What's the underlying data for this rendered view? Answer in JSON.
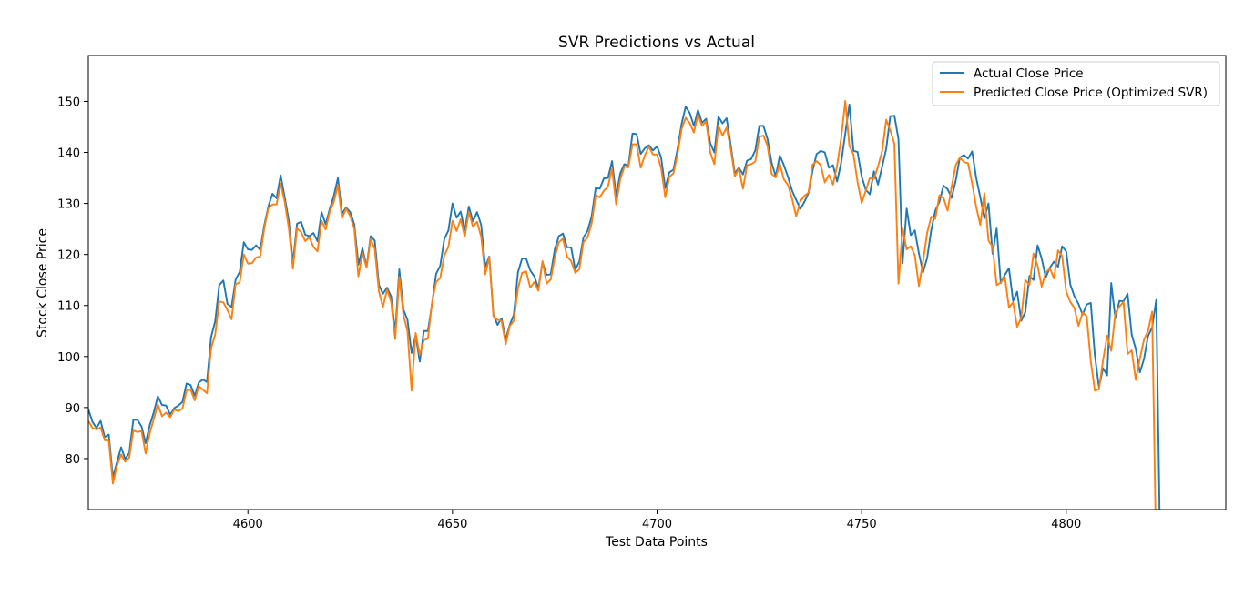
{
  "chart_data": {
    "type": "line",
    "title": "SVR Predictions vs Actual",
    "xlabel": "Test Data Points",
    "ylabel": "Stock Close Price",
    "xlim": [
      4561,
      4839
    ],
    "ylim": [
      70,
      159
    ],
    "xticks": [
      4600,
      4650,
      4700,
      4750,
      4800
    ],
    "yticks": [
      80,
      90,
      100,
      110,
      120,
      130,
      140,
      150
    ],
    "grid": false,
    "legend_position": "top-right",
    "x_start": 4561,
    "series": [
      {
        "name": "Actual Close Price",
        "color": "#1f77b4",
        "values": [
          89.7,
          87.2,
          86.0,
          87.4,
          84.2,
          84.7,
          76.3,
          79.3,
          82.2,
          79.9,
          81.1,
          87.6,
          87.6,
          86.3,
          83.0,
          86.5,
          89.1,
          92.2,
          90.5,
          90.4,
          88.6,
          89.9,
          90.4,
          91.1,
          94.7,
          94.4,
          92.3,
          94.9,
          95.5,
          95.0,
          103.8,
          106.9,
          114.0,
          114.9,
          110.3,
          109.7,
          115.1,
          116.6,
          122.4,
          121.0,
          120.9,
          121.8,
          120.9,
          125.7,
          129.4,
          131.9,
          131.0,
          135.5,
          131.2,
          126.6,
          118.3,
          126.0,
          126.4,
          123.9,
          123.6,
          124.2,
          122.6,
          128.3,
          125.9,
          128.9,
          131.5,
          135.0,
          128.0,
          129.2,
          128.3,
          125.9,
          118.0,
          121.2,
          117.6,
          123.6,
          122.7,
          114.1,
          112.3,
          113.5,
          111.8,
          104.7,
          117.1,
          109.2,
          107.2,
          100.7,
          104.2,
          99.0,
          105.0,
          105.0,
          110.3,
          116.2,
          117.8,
          123.0,
          124.7,
          130.0,
          127.2,
          128.4,
          124.7,
          129.4,
          126.5,
          128.3,
          125.8,
          117.6,
          119.6,
          108.2,
          106.2,
          107.5,
          103.4,
          106.2,
          108.2,
          116.5,
          119.2,
          119.2,
          116.9,
          115.7,
          113.4,
          118.5,
          116.0,
          116.1,
          121.0,
          123.6,
          124.1,
          121.4,
          121.4,
          117.0,
          118.6,
          123.3,
          124.6,
          127.4,
          133.0,
          132.9,
          134.9,
          135.0,
          138.3,
          131.5,
          135.9,
          137.7,
          137.4,
          143.7,
          143.6,
          139.7,
          140.8,
          141.4,
          140.4,
          141.2,
          139.0,
          133.0,
          136.1,
          136.6,
          140.6,
          145.6,
          149.0,
          147.7,
          145.2,
          148.3,
          145.8,
          146.6,
          141.8,
          140.0,
          147.0,
          145.7,
          146.7,
          141.5,
          135.9,
          137.0,
          135.7,
          138.4,
          138.7,
          140.4,
          145.2,
          145.2,
          142.6,
          138.0,
          135.3,
          139.4,
          137.5,
          135.2,
          132.5,
          130.7,
          128.9,
          130.3,
          132.0,
          136.4,
          139.7,
          140.3,
          140.0,
          137.0,
          137.5,
          134.3,
          138.0,
          143.7,
          149.4,
          140.3,
          140.1,
          135.3,
          132.7,
          131.8,
          136.3,
          133.7,
          137.2,
          140.7,
          147.1,
          147.2,
          142.6,
          118.3,
          129.0,
          123.8,
          124.7,
          120.2,
          116.5,
          119.3,
          124.7,
          128.6,
          130.3,
          133.5,
          132.8,
          131.1,
          134.5,
          139.0,
          139.5,
          138.8,
          140.2,
          135.0,
          131.2,
          127.1,
          130.0,
          120.1,
          125.1,
          114.4,
          116.0,
          117.3,
          110.9,
          112.7,
          107.0,
          108.7,
          115.8,
          115.0,
          121.8,
          119.2,
          115.5,
          117.4,
          118.6,
          117.6,
          121.6,
          120.6,
          114.1,
          111.8,
          110.3,
          108.2,
          110.2,
          110.5,
          100.2,
          94.0,
          97.7,
          96.3,
          114.4,
          107.5,
          110.9,
          110.8,
          112.3,
          104.3,
          101.5,
          96.9,
          99.5,
          104.0,
          105.7,
          111.1,
          60.0
        ]
      },
      {
        "name": "Predicted Close Price (Optimized SVR)",
        "color": "#ff7f0e",
        "values": [
          87.4,
          86.0,
          85.7,
          86.1,
          83.6,
          83.5,
          75.1,
          78.6,
          80.8,
          79.4,
          80.2,
          85.5,
          85.2,
          85.4,
          81.0,
          84.9,
          87.8,
          90.6,
          88.3,
          89.0,
          88.1,
          89.6,
          89.3,
          89.8,
          93.4,
          93.5,
          91.4,
          94.2,
          93.5,
          92.8,
          101.6,
          104.3,
          110.8,
          110.6,
          109.1,
          107.3,
          114.2,
          114.5,
          120.0,
          118.2,
          118.3,
          119.4,
          119.6,
          125.1,
          129.1,
          129.8,
          129.8,
          133.9,
          130.3,
          125.1,
          117.2,
          125.1,
          124.4,
          122.6,
          123.4,
          121.5,
          120.6,
          126.6,
          124.9,
          128.4,
          130.3,
          133.6,
          127.1,
          129.0,
          127.5,
          125.0,
          115.7,
          120.3,
          117.4,
          123.0,
          121.1,
          112.8,
          109.7,
          113.1,
          110.7,
          103.4,
          115.6,
          108.1,
          105.0,
          93.3,
          104.6,
          100.3,
          103.2,
          103.5,
          110.6,
          114.6,
          115.4,
          119.8,
          121.5,
          126.6,
          124.6,
          126.9,
          123.5,
          128.4,
          125.4,
          126.4,
          123.5,
          116.1,
          119.5,
          107.9,
          107.2,
          107.0,
          102.4,
          106.0,
          107.0,
          113.3,
          116.4,
          116.7,
          113.5,
          114.6,
          112.9,
          118.7,
          114.3,
          115.1,
          119.4,
          122.4,
          123.1,
          119.6,
          118.7,
          116.4,
          117.1,
          122.4,
          123.3,
          126.0,
          131.6,
          131.2,
          132.5,
          133.3,
          136.8,
          129.8,
          134.7,
          137.2,
          137.1,
          141.6,
          141.6,
          137.0,
          139.4,
          141.1,
          139.6,
          139.6,
          136.9,
          131.2,
          135.2,
          135.9,
          139.6,
          144.6,
          146.8,
          145.7,
          143.9,
          147.4,
          145.2,
          146.1,
          140.0,
          137.7,
          145.2,
          143.3,
          144.9,
          140.7,
          135.3,
          136.8,
          132.9,
          137.5,
          137.7,
          138.2,
          143.1,
          143.3,
          141.3,
          135.8,
          135.1,
          137.8,
          134.7,
          133.6,
          130.9,
          127.5,
          130.4,
          131.5,
          132.1,
          137.6,
          138.3,
          137.5,
          134.1,
          135.6,
          133.7,
          137.4,
          142.8,
          150.1,
          141.3,
          139.6,
          134.2,
          130.1,
          132.5,
          135.0,
          134.8,
          137.3,
          140.2,
          146.4,
          144.3,
          141.7,
          114.3,
          125.1,
          121.0,
          121.6,
          119.8,
          113.8,
          118.6,
          124.2,
          127.4,
          127.0,
          131.6,
          131.1,
          128.6,
          133.3,
          137.5,
          139.0,
          138.1,
          137.9,
          133.9,
          129.3,
          125.8,
          132.0,
          122.7,
          121.5,
          114.0,
          114.5,
          115.6,
          109.6,
          110.6,
          105.8,
          107.6,
          115.0,
          114.0,
          120.2,
          117.8,
          113.7,
          116.5,
          117.3,
          115.3,
          120.8,
          119.7,
          112.7,
          110.7,
          109.5,
          106.0,
          108.6,
          107.9,
          99.1,
          93.3,
          93.6,
          99.3,
          104.1,
          101.1,
          108.5,
          109.8,
          110.7,
          100.5,
          101.2,
          95.4,
          99.6,
          103.3,
          105.0,
          108.8,
          60.0
        ]
      }
    ]
  }
}
